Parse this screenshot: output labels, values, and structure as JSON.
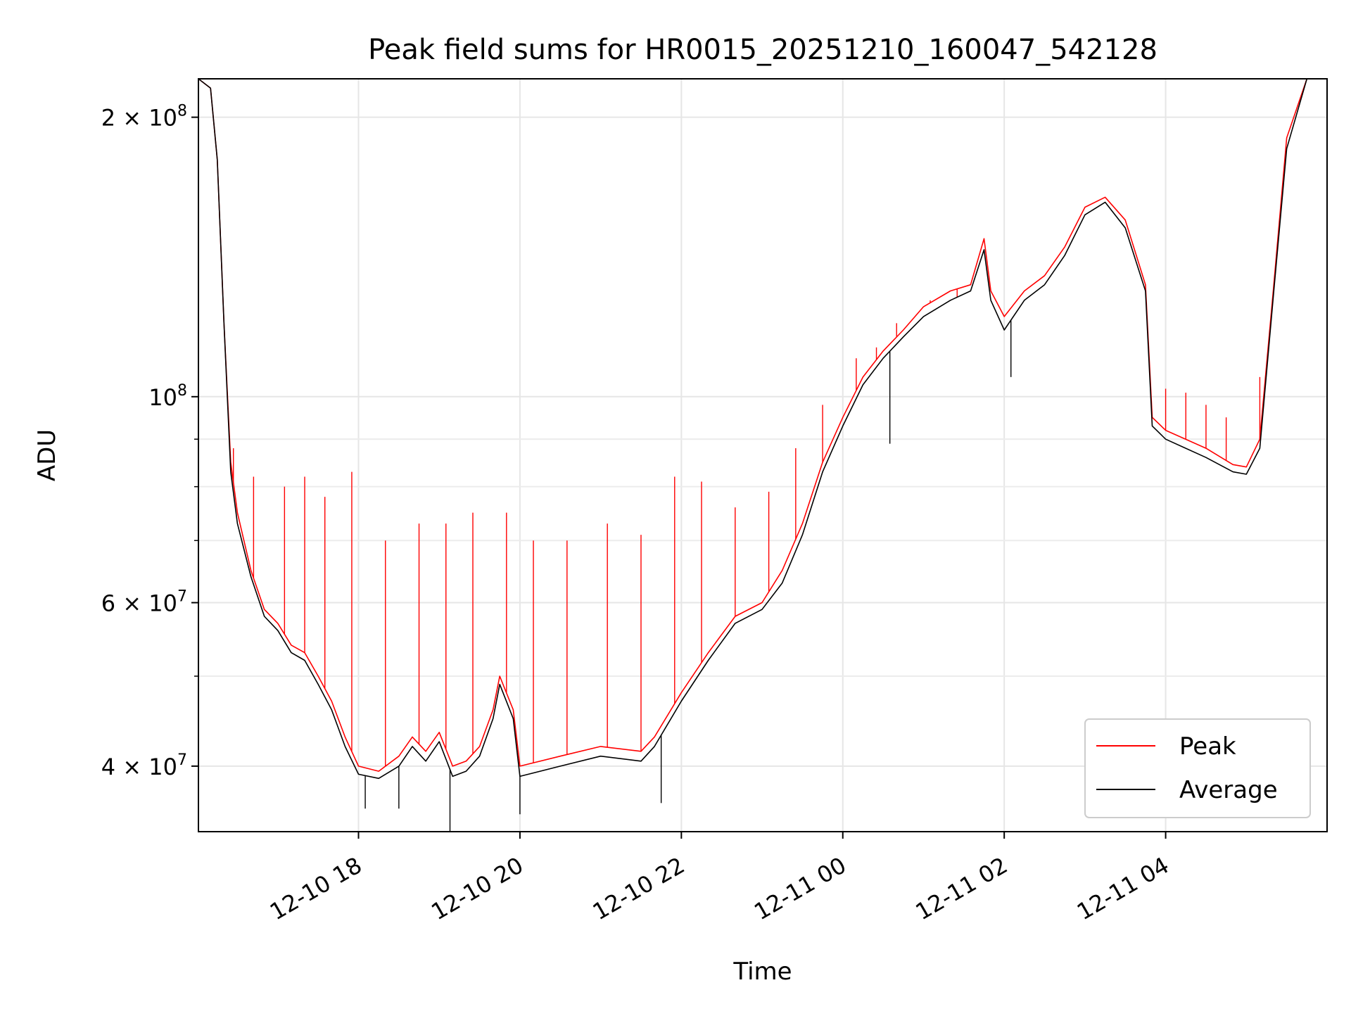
{
  "chart_data": {
    "type": "line",
    "title": "Peak field sums for HR0015_20251210_160047_542128",
    "xlabel": "Time",
    "ylabel": "ADU",
    "yscale": "log",
    "ylim": [
      34000000,
      220000000
    ],
    "xlim": [
      "2025-12-10 16:01",
      "2025-12-11 06:00"
    ],
    "grid": true,
    "legend_position": "lower right",
    "x_ticks": [
      {
        "value": "2025-12-10 18:00",
        "label": "12-10 18"
      },
      {
        "value": "2025-12-10 20:00",
        "label": "12-10 20"
      },
      {
        "value": "2025-12-10 22:00",
        "label": "12-10 22"
      },
      {
        "value": "2025-12-11 00:00",
        "label": "12-11 00"
      },
      {
        "value": "2025-12-11 02:00",
        "label": "12-11 02"
      },
      {
        "value": "2025-12-11 04:00",
        "label": "12-11 04"
      }
    ],
    "y_major_ticks": [
      {
        "value": 40000000,
        "base": "4 × 10",
        "exp": "7"
      },
      {
        "value": 60000000,
        "base": "6 × 10",
        "exp": "7"
      },
      {
        "value": 100000000,
        "base": "10",
        "exp": "8"
      },
      {
        "value": 200000000,
        "base": "2 × 10",
        "exp": "8"
      }
    ],
    "y_minor_ticks": [
      50000000,
      70000000,
      80000000,
      90000000
    ],
    "series": [
      {
        "name": "Peak",
        "color": "#ff0000",
        "points": [
          [
            "2025-12-10 16:01",
            220000000.0
          ],
          [
            "2025-12-10 16:10",
            215000000.0
          ],
          [
            "2025-12-10 16:15",
            180000000.0
          ],
          [
            "2025-12-10 16:20",
            120000000.0
          ],
          [
            "2025-12-10 16:25",
            85000000.0
          ],
          [
            "2025-12-10 16:30",
            75000000.0
          ],
          [
            "2025-12-10 16:40",
            65000000.0
          ],
          [
            "2025-12-10 16:50",
            59000000.0
          ],
          [
            "2025-12-10 17:00",
            57000000.0
          ],
          [
            "2025-12-10 17:10",
            54000000.0
          ],
          [
            "2025-12-10 17:20",
            53000000.0
          ],
          [
            "2025-12-10 17:30",
            50000000.0
          ],
          [
            "2025-12-10 17:40",
            47000000.0
          ],
          [
            "2025-12-10 17:50",
            43000000.0
          ],
          [
            "2025-12-10 18:00",
            40000000.0
          ],
          [
            "2025-12-10 18:15",
            39500000.0
          ],
          [
            "2025-12-10 18:30",
            41000000.0
          ],
          [
            "2025-12-10 18:40",
            43000000.0
          ],
          [
            "2025-12-10 18:50",
            41500000.0
          ],
          [
            "2025-12-10 19:00",
            43500000.0
          ],
          [
            "2025-12-10 19:10",
            40000000.0
          ],
          [
            "2025-12-10 19:20",
            40500000.0
          ],
          [
            "2025-12-10 19:30",
            42000000.0
          ],
          [
            "2025-12-10 19:40",
            46000000.0
          ],
          [
            "2025-12-10 19:45",
            50000000.0
          ],
          [
            "2025-12-10 19:55",
            46000000.0
          ],
          [
            "2025-12-10 20:00",
            40000000.0
          ],
          [
            "2025-12-10 20:30",
            41000000.0
          ],
          [
            "2025-12-10 21:00",
            42000000.0
          ],
          [
            "2025-12-10 21:30",
            41500000.0
          ],
          [
            "2025-12-10 21:40",
            43000000.0
          ],
          [
            "2025-12-10 22:00",
            48000000.0
          ],
          [
            "2025-12-10 22:20",
            53000000.0
          ],
          [
            "2025-12-10 22:40",
            58000000.0
          ],
          [
            "2025-12-10 23:00",
            60000000.0
          ],
          [
            "2025-12-10 23:15",
            65000000.0
          ],
          [
            "2025-12-10 23:30",
            73000000.0
          ],
          [
            "2025-12-10 23:45",
            85000000.0
          ],
          [
            "2025-12-11 00:00",
            95000000.0
          ],
          [
            "2025-12-11 00:15",
            105000000.0
          ],
          [
            "2025-12-11 00:30",
            112000000.0
          ],
          [
            "2025-12-11 00:45",
            118000000.0
          ],
          [
            "2025-12-11 01:00",
            125000000.0
          ],
          [
            "2025-12-11 01:20",
            130000000.0
          ],
          [
            "2025-12-11 01:35",
            132000000.0
          ],
          [
            "2025-12-11 01:45",
            148000000.0
          ],
          [
            "2025-12-11 01:50",
            130000000.0
          ],
          [
            "2025-12-11 02:00",
            122000000.0
          ],
          [
            "2025-12-11 02:15",
            130000000.0
          ],
          [
            "2025-12-11 02:30",
            135000000.0
          ],
          [
            "2025-12-11 02:45",
            145000000.0
          ],
          [
            "2025-12-11 03:00",
            160000000.0
          ],
          [
            "2025-12-11 03:15",
            164000000.0
          ],
          [
            "2025-12-11 03:30",
            155000000.0
          ],
          [
            "2025-12-11 03:45",
            132000000.0
          ],
          [
            "2025-12-11 03:50",
            95000000.0
          ],
          [
            "2025-12-11 04:00",
            92000000.0
          ],
          [
            "2025-12-11 04:30",
            88000000.0
          ],
          [
            "2025-12-11 04:50",
            84500000.0
          ],
          [
            "2025-12-11 05:00",
            84000000.0
          ],
          [
            "2025-12-11 05:10",
            90000000.0
          ],
          [
            "2025-12-11 05:20",
            130000000.0
          ],
          [
            "2025-12-11 05:30",
            190000000.0
          ],
          [
            "2025-12-11 05:45",
            220000000.0
          ],
          [
            "2025-12-11 06:00",
            220000000.0
          ]
        ],
        "spikes": [
          [
            "2025-12-10 16:27",
            88000000.0
          ],
          [
            "2025-12-10 16:42",
            82000000.0
          ],
          [
            "2025-12-10 17:05",
            80000000.0
          ],
          [
            "2025-12-10 17:20",
            82000000.0
          ],
          [
            "2025-12-10 17:35",
            78000000.0
          ],
          [
            "2025-12-10 17:55",
            83000000.0
          ],
          [
            "2025-12-10 18:20",
            70000000.0
          ],
          [
            "2025-12-10 18:45",
            73000000.0
          ],
          [
            "2025-12-10 19:05",
            73000000.0
          ],
          [
            "2025-12-10 19:25",
            75000000.0
          ],
          [
            "2025-12-10 19:50",
            75000000.0
          ],
          [
            "2025-12-10 20:10",
            70000000.0
          ],
          [
            "2025-12-10 20:35",
            70000000.0
          ],
          [
            "2025-12-10 21:05",
            73000000.0
          ],
          [
            "2025-12-10 21:30",
            71000000.0
          ],
          [
            "2025-12-10 21:55",
            82000000.0
          ],
          [
            "2025-12-10 22:15",
            81000000.0
          ],
          [
            "2025-12-10 22:40",
            76000000.0
          ],
          [
            "2025-12-10 23:05",
            79000000.0
          ],
          [
            "2025-12-10 23:25",
            88000000.0
          ],
          [
            "2025-12-10 23:45",
            98000000.0
          ],
          [
            "2025-12-11 00:10",
            110000000.0
          ],
          [
            "2025-12-11 00:25",
            113000000.0
          ],
          [
            "2025-12-11 00:40",
            120000000.0
          ],
          [
            "2025-12-11 01:05",
            127000000.0
          ],
          [
            "2025-12-11 01:25",
            128000000.0
          ],
          [
            "2025-12-11 04:00",
            102000000.0
          ],
          [
            "2025-12-11 04:15",
            101000000.0
          ],
          [
            "2025-12-11 04:30",
            98000000.0
          ],
          [
            "2025-12-11 04:45",
            95000000.0
          ],
          [
            "2025-12-11 05:10",
            105000000.0
          ]
        ]
      },
      {
        "name": "Average",
        "color": "#000000",
        "points": [
          [
            "2025-12-10 16:01",
            220000000.0
          ],
          [
            "2025-12-10 16:10",
            215000000.0
          ],
          [
            "2025-12-10 16:15",
            180000000.0
          ],
          [
            "2025-12-10 16:20",
            120000000.0
          ],
          [
            "2025-12-10 16:25",
            83000000.0
          ],
          [
            "2025-12-10 16:30",
            73000000.0
          ],
          [
            "2025-12-10 16:40",
            64000000.0
          ],
          [
            "2025-12-10 16:50",
            58000000.0
          ],
          [
            "2025-12-10 17:00",
            56000000.0
          ],
          [
            "2025-12-10 17:10",
            53000000.0
          ],
          [
            "2025-12-10 17:20",
            52000000.0
          ],
          [
            "2025-12-10 17:30",
            49000000.0
          ],
          [
            "2025-12-10 17:40",
            46000000.0
          ],
          [
            "2025-12-10 17:50",
            42000000.0
          ],
          [
            "2025-12-10 18:00",
            39200000.0
          ],
          [
            "2025-12-10 18:15",
            38800000.0
          ],
          [
            "2025-12-10 18:30",
            40000000.0
          ],
          [
            "2025-12-10 18:40",
            42000000.0
          ],
          [
            "2025-12-10 18:50",
            40500000.0
          ],
          [
            "2025-12-10 19:00",
            42500000.0
          ],
          [
            "2025-12-10 19:10",
            39000000.0
          ],
          [
            "2025-12-10 19:20",
            39500000.0
          ],
          [
            "2025-12-10 19:30",
            41000000.0
          ],
          [
            "2025-12-10 19:40",
            45000000.0
          ],
          [
            "2025-12-10 19:45",
            49000000.0
          ],
          [
            "2025-12-10 19:55",
            45000000.0
          ],
          [
            "2025-12-10 20:00",
            39000000.0
          ],
          [
            "2025-12-10 20:30",
            40000000.0
          ],
          [
            "2025-12-10 21:00",
            41000000.0
          ],
          [
            "2025-12-10 21:30",
            40500000.0
          ],
          [
            "2025-12-10 21:40",
            42000000.0
          ],
          [
            "2025-12-10 22:00",
            47000000.0
          ],
          [
            "2025-12-10 22:20",
            52000000.0
          ],
          [
            "2025-12-10 22:40",
            57000000.0
          ],
          [
            "2025-12-10 23:00",
            59000000.0
          ],
          [
            "2025-12-10 23:15",
            63000000.0
          ],
          [
            "2025-12-10 23:30",
            71000000.0
          ],
          [
            "2025-12-10 23:45",
            83000000.0
          ],
          [
            "2025-12-11 00:00",
            93000000.0
          ],
          [
            "2025-12-11 00:15",
            103000000.0
          ],
          [
            "2025-12-11 00:30",
            110000000.0
          ],
          [
            "2025-12-11 00:45",
            116000000.0
          ],
          [
            "2025-12-11 01:00",
            122000000.0
          ],
          [
            "2025-12-11 01:20",
            127000000.0
          ],
          [
            "2025-12-11 01:35",
            130000000.0
          ],
          [
            "2025-12-11 01:45",
            144000000.0
          ],
          [
            "2025-12-11 01:50",
            127000000.0
          ],
          [
            "2025-12-11 02:00",
            118000000.0
          ],
          [
            "2025-12-11 02:15",
            127000000.0
          ],
          [
            "2025-12-11 02:30",
            132000000.0
          ],
          [
            "2025-12-11 02:45",
            142000000.0
          ],
          [
            "2025-12-11 03:00",
            157000000.0
          ],
          [
            "2025-12-11 03:15",
            162000000.0
          ],
          [
            "2025-12-11 03:30",
            152000000.0
          ],
          [
            "2025-12-11 03:45",
            130000000.0
          ],
          [
            "2025-12-11 03:50",
            93000000.0
          ],
          [
            "2025-12-11 04:00",
            90000000.0
          ],
          [
            "2025-12-11 04:30",
            86000000.0
          ],
          [
            "2025-12-11 04:50",
            83000000.0
          ],
          [
            "2025-12-11 05:00",
            82500000.0
          ],
          [
            "2025-12-11 05:10",
            88000000.0
          ],
          [
            "2025-12-11 05:20",
            128000000.0
          ],
          [
            "2025-12-11 05:30",
            185000000.0
          ],
          [
            "2025-12-11 05:45",
            220000000.0
          ],
          [
            "2025-12-11 06:00",
            220000000.0
          ]
        ],
        "spikes": [
          [
            "2025-12-10 18:05",
            36000000.0
          ],
          [
            "2025-12-10 18:30",
            36000000.0
          ],
          [
            "2025-12-10 19:08",
            34000000.0
          ],
          [
            "2025-12-10 20:00",
            35500000.0
          ],
          [
            "2025-12-10 21:45",
            36500000.0
          ],
          [
            "2025-12-11 00:35",
            89000000.0
          ],
          [
            "2025-12-11 02:05",
            105000000.0
          ]
        ]
      }
    ]
  }
}
